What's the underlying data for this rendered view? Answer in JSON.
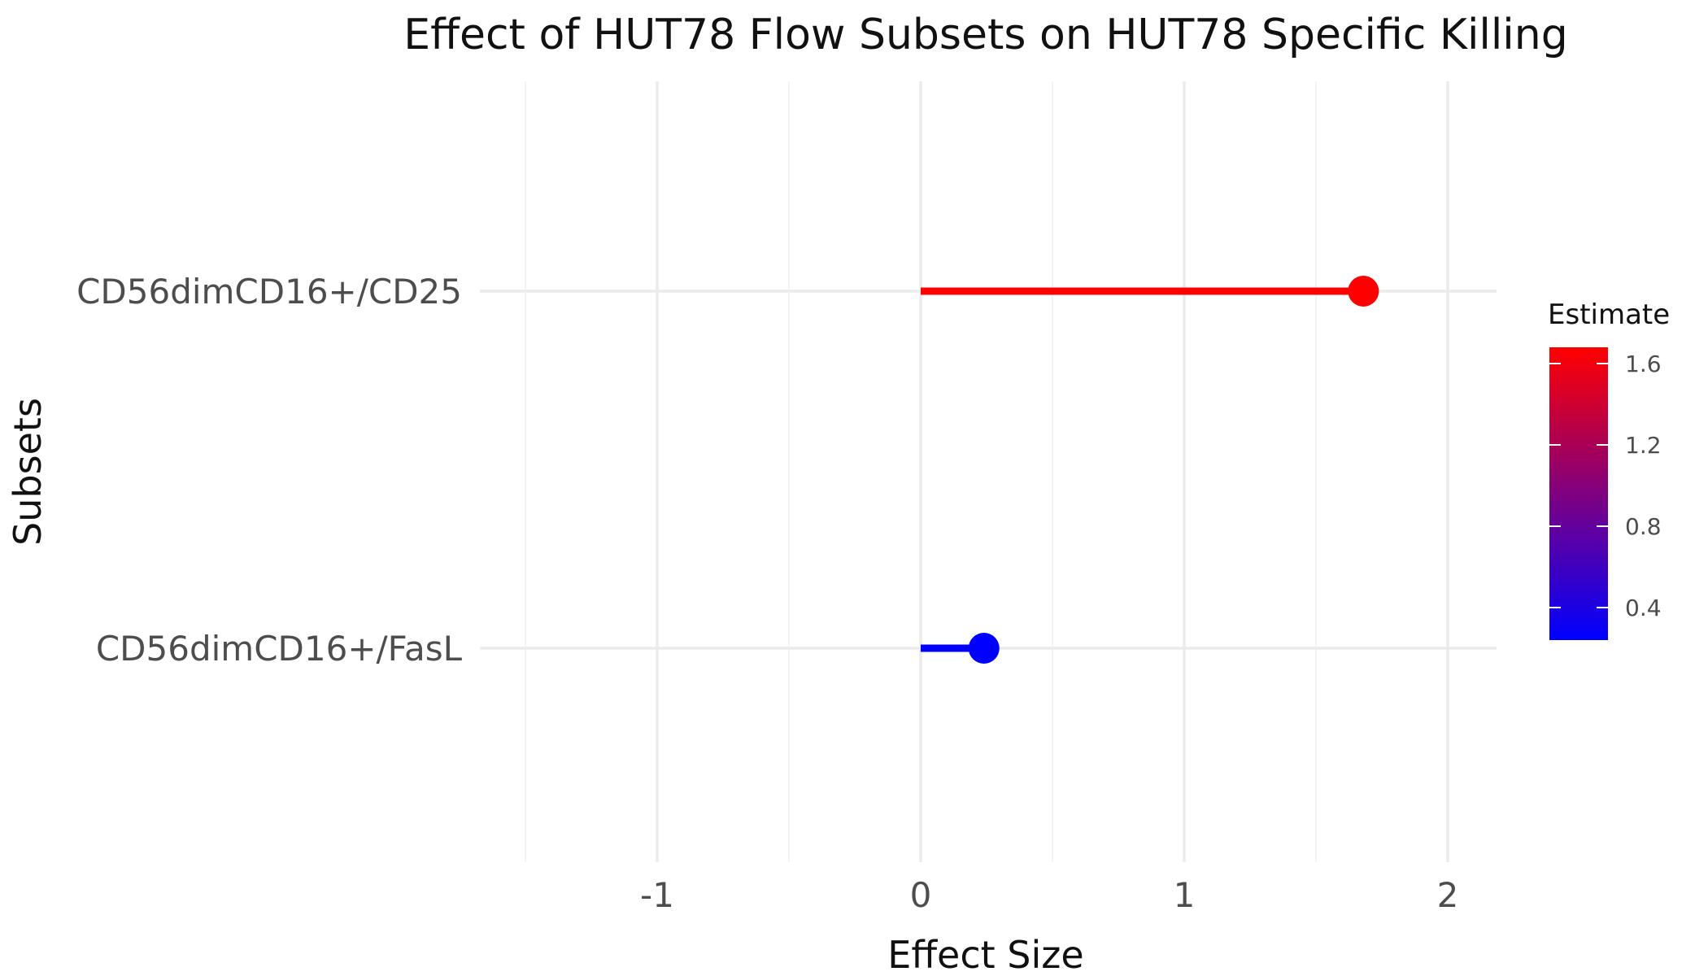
{
  "chart_data": {
    "type": "lollipop",
    "title": "Effect of HUT78 Flow Subsets on HUT78 Specific Killing",
    "xlabel": "Effect Size",
    "ylabel": "Subsets",
    "xlim": [
      -1.5,
      2.15
    ],
    "x_ticks": [
      "-1",
      "0",
      "1",
      "2"
    ],
    "x_tick_values": [
      -1,
      0,
      1,
      2
    ],
    "x_minor_values": [
      -1.5,
      -0.5,
      0.5,
      1.5
    ],
    "categories": [
      "CD56dimCD16+/CD25",
      "CD56dimCD16+/FasL"
    ],
    "values": [
      1.68,
      0.24
    ],
    "colors": [
      "#ff0000",
      "#0000ff"
    ],
    "legend": {
      "title": "Estimate",
      "position": "right",
      "range": [
        0.24,
        1.68
      ],
      "ticks": [
        "1.6",
        "1.2",
        "0.8",
        "0.4"
      ],
      "tick_values": [
        1.6,
        1.2,
        0.8,
        0.4
      ],
      "low_color": "#0000ff",
      "high_color": "#ff0000"
    }
  }
}
